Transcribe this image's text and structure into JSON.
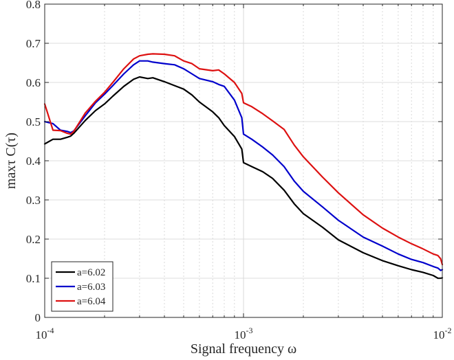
{
  "chart_data": {
    "type": "line",
    "title": "",
    "xlabel": "Signal frequency ω",
    "ylabel": "maxτ C(τ)",
    "xscale": "log",
    "xlim": [
      0.0001,
      0.01
    ],
    "ylim": [
      0,
      0.8
    ],
    "grid": true,
    "legend_location": "bottom-left",
    "x_ticks": [
      {
        "base": "10",
        "exp": "-4"
      },
      {
        "base": "10",
        "exp": "-3"
      },
      {
        "base": "10",
        "exp": "-2"
      }
    ],
    "y_ticks": [
      "0",
      "0.1",
      "0.2",
      "0.3",
      "0.4",
      "0.5",
      "0.6",
      "0.7",
      "0.8"
    ],
    "x": [
      0.0001,
      0.00011,
      0.00012,
      0.00013,
      0.000135,
      0.00014,
      0.00016,
      0.00018,
      0.0002,
      0.00022,
      0.00025,
      0.00028,
      0.0003,
      0.00033,
      0.00035,
      0.0004,
      0.00045,
      0.0005,
      0.00055,
      0.0006,
      0.0007,
      0.00075,
      0.0008,
      0.0009,
      0.00098,
      0.001,
      0.0011,
      0.00125,
      0.0014,
      0.0016,
      0.0018,
      0.002,
      0.0025,
      0.003,
      0.004,
      0.005,
      0.006,
      0.007,
      0.008,
      0.009,
      0.0095,
      0.0098,
      0.01
    ],
    "series": [
      {
        "name": "a=6.02",
        "color": "#000000",
        "values": [
          0.443,
          0.455,
          0.455,
          0.46,
          0.463,
          0.47,
          0.503,
          0.528,
          0.545,
          0.565,
          0.59,
          0.608,
          0.614,
          0.61,
          0.612,
          0.602,
          0.592,
          0.583,
          0.568,
          0.55,
          0.525,
          0.51,
          0.49,
          0.462,
          0.43,
          0.395,
          0.385,
          0.372,
          0.355,
          0.325,
          0.29,
          0.265,
          0.23,
          0.198,
          0.165,
          0.145,
          0.132,
          0.122,
          0.115,
          0.107,
          0.1,
          0.1,
          0.101
        ]
      },
      {
        "name": "a=6.03",
        "color": "#0000cc",
        "values": [
          0.5,
          0.495,
          0.478,
          0.475,
          0.472,
          0.476,
          0.515,
          0.548,
          0.57,
          0.592,
          0.622,
          0.645,
          0.655,
          0.655,
          0.652,
          0.648,
          0.645,
          0.635,
          0.622,
          0.61,
          0.602,
          0.595,
          0.59,
          0.555,
          0.51,
          0.468,
          0.455,
          0.435,
          0.415,
          0.385,
          0.348,
          0.322,
          0.282,
          0.248,
          0.205,
          0.182,
          0.162,
          0.148,
          0.14,
          0.13,
          0.126,
          0.12,
          0.122
        ]
      },
      {
        "name": "a=6.04",
        "color": "#dd1111",
        "values": [
          0.545,
          0.478,
          0.477,
          0.47,
          0.468,
          0.475,
          0.522,
          0.552,
          0.575,
          0.6,
          0.635,
          0.66,
          0.668,
          0.672,
          0.673,
          0.672,
          0.668,
          0.655,
          0.648,
          0.635,
          0.63,
          0.632,
          0.622,
          0.6,
          0.572,
          0.548,
          0.538,
          0.52,
          0.502,
          0.48,
          0.44,
          0.41,
          0.358,
          0.318,
          0.262,
          0.228,
          0.205,
          0.188,
          0.175,
          0.162,
          0.158,
          0.15,
          0.135
        ]
      }
    ]
  }
}
